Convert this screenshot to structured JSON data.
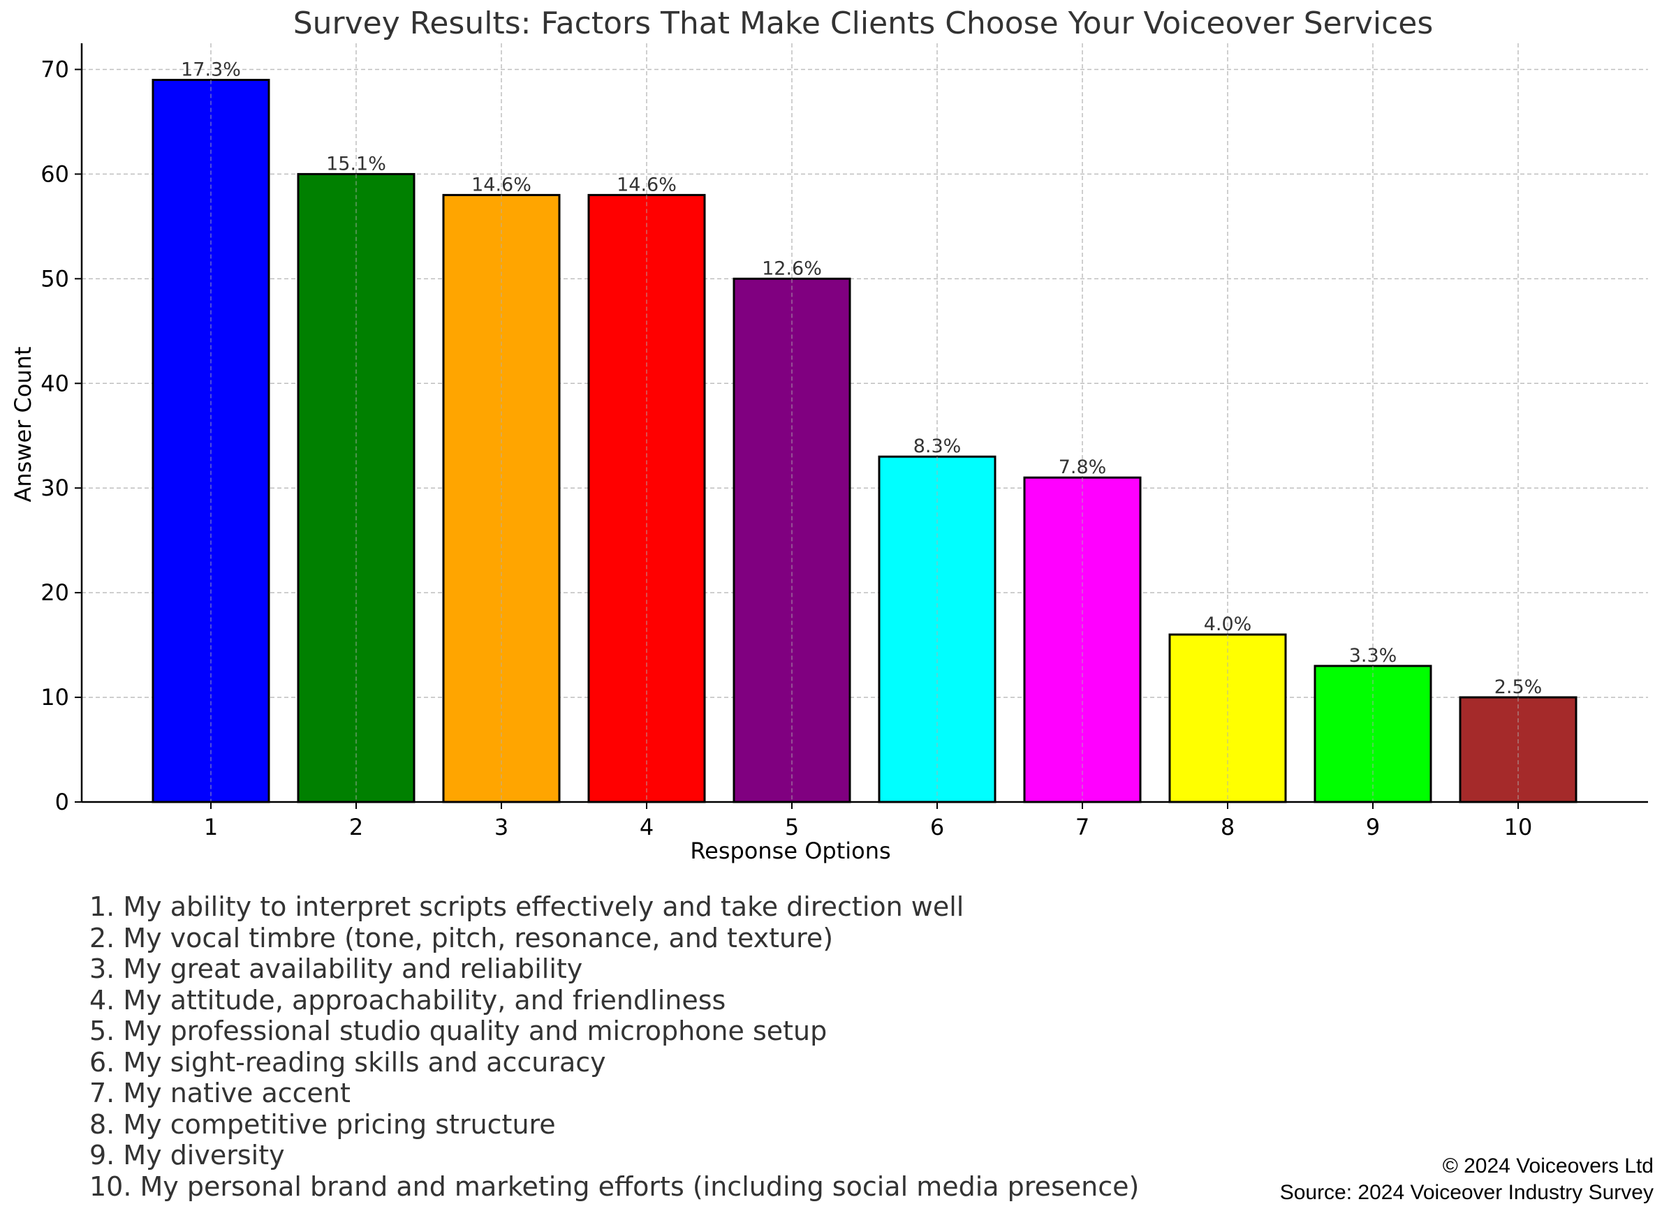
{
  "chart_data": {
    "type": "bar",
    "title": "Survey Results: Factors That Make Clients Choose Your Voiceover Services",
    "xlabel": "Response Options",
    "ylabel": "Answer Count",
    "categories": [
      "1",
      "2",
      "3",
      "4",
      "5",
      "6",
      "7",
      "8",
      "9",
      "10"
    ],
    "values": [
      69,
      60,
      58,
      58,
      50,
      33,
      31,
      16,
      13,
      10
    ],
    "data_labels": [
      "17.3%",
      "15.1%",
      "14.6%",
      "14.6%",
      "12.6%",
      "8.3%",
      "7.8%",
      "4.0%",
      "3.3%",
      "2.5%"
    ],
    "colors": [
      "#0000ff",
      "#008000",
      "#ffa500",
      "#ff0000",
      "#800080",
      "#00ffff",
      "#ff00ff",
      "#ffff00",
      "#00ff00",
      "#a52a2a"
    ],
    "ylim": [
      0,
      72.5
    ],
    "yticks": [
      0,
      10,
      20,
      30,
      40,
      50,
      60,
      70
    ],
    "grid": true
  },
  "legend_items": [
    "1. My ability to interpret scripts effectively and take direction well",
    "2. My vocal timbre (tone, pitch, resonance, and texture)",
    "3. My great availability and reliability",
    "4. My attitude, approachability, and friendliness",
    "5. My professional studio quality and microphone setup",
    "6. My sight-reading skills and accuracy",
    "7. My native accent",
    "8. My competitive pricing structure",
    "9. My diversity",
    "10. My personal brand and marketing efforts (including social media presence)"
  ],
  "footer": {
    "copyright": "© 2024 Voiceovers Ltd",
    "source": "Source: 2024 Voiceover Industry Survey"
  }
}
